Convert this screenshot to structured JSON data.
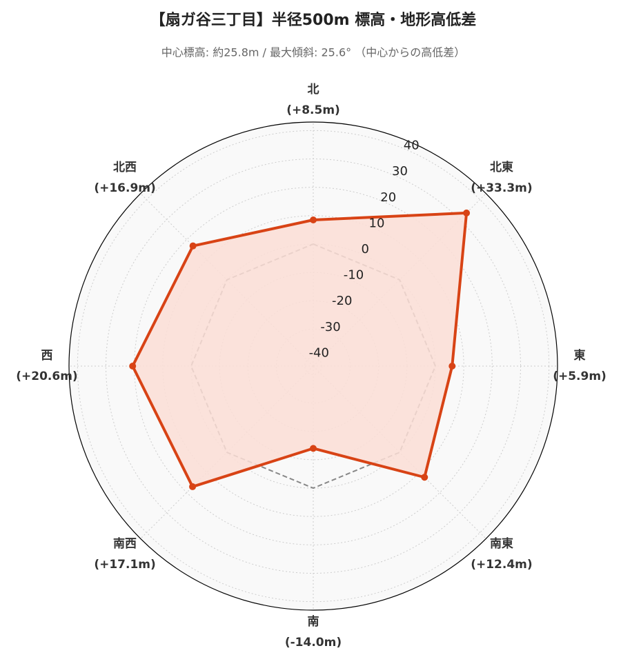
{
  "chart_data": {
    "type": "radar",
    "title": "【扇ガ谷三丁目】半径500m 標高・地形高低差",
    "subtitle": "中心標高: 約25.8m / 最大傾斜: 25.6° （中心からの高低差）",
    "categories": [
      "北",
      "北東",
      "東",
      "南東",
      "南",
      "南西",
      "西",
      "北西"
    ],
    "values": [
      8.5,
      33.3,
      5.9,
      12.4,
      -14.0,
      17.1,
      20.6,
      16.9
    ],
    "value_labels": [
      "(+8.5m)",
      "(+33.3m)",
      "(+5.9m)",
      "(+12.4m)",
      "(-14.0m)",
      "(+17.1m)",
      "(+20.6m)",
      "(+16.9m)"
    ],
    "color": "#d84315",
    "fill_color": "#fcded6",
    "ylim": [
      -43,
      43
    ],
    "yticks": [
      -40,
      -30,
      -20,
      -10,
      0,
      10,
      20,
      30,
      40
    ],
    "grid": true
  }
}
